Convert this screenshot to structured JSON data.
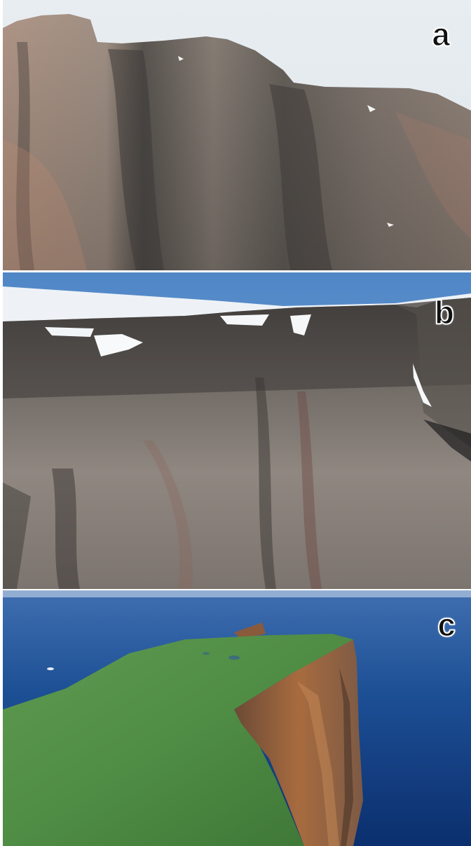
{
  "panels": [
    {
      "label": "a"
    },
    {
      "label": "b"
    },
    {
      "label": "c"
    }
  ]
}
